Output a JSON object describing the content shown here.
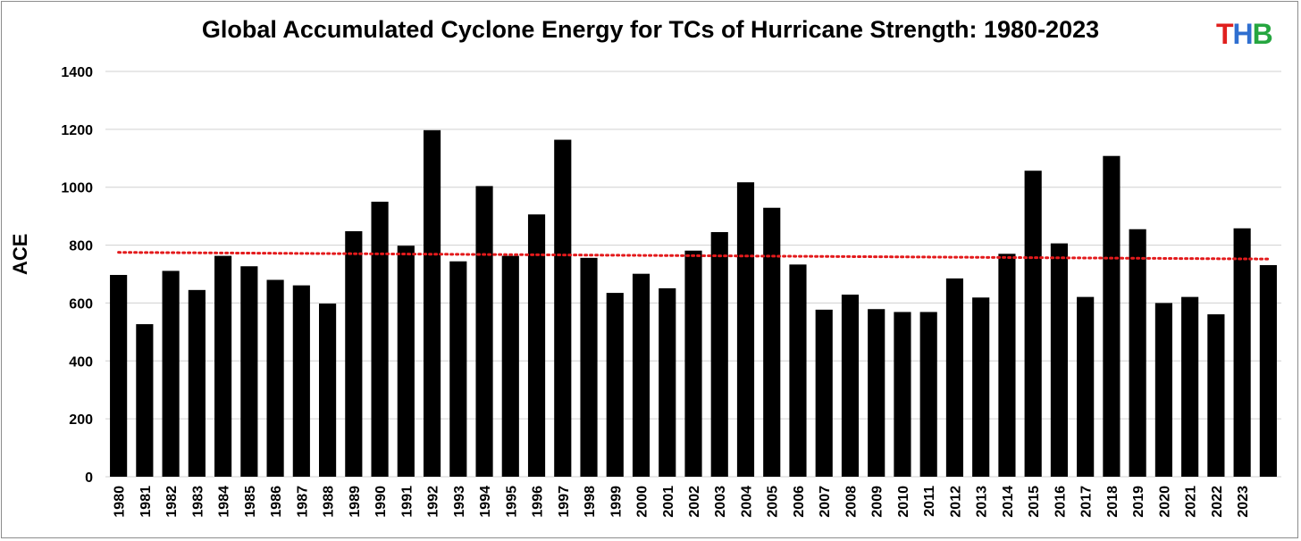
{
  "chart_data": {
    "type": "bar",
    "title": "Global Accumulated Cyclone Energy for TCs of Hurricane Strength: 1980-2023",
    "xlabel": "",
    "ylabel": "ACE",
    "ylim": [
      0,
      1400
    ],
    "yticks": [
      "0",
      "200",
      "400",
      "600",
      "800",
      "1000",
      "1200",
      "1400"
    ],
    "grid": true,
    "bar_color": "#000000",
    "trend_color": "#e31a1c",
    "categories": [
      "1980",
      "1981",
      "1982",
      "1983",
      "1984",
      "1985",
      "1986",
      "1987",
      "1988",
      "1989",
      "1990",
      "1991",
      "1992",
      "1993",
      "1994",
      "1995",
      "1996",
      "1997",
      "1998",
      "1999",
      "2000",
      "2001",
      "2002",
      "2003",
      "2004",
      "2005",
      "2006",
      "2007",
      "2008",
      "2009",
      "2010",
      "2011",
      "2012",
      "2013",
      "2014",
      "2015",
      "2016",
      "2017",
      "2018",
      "2019",
      "2020",
      "2021",
      "2022",
      "2023",
      ""
    ],
    "values": [
      697,
      527,
      711,
      645,
      763,
      727,
      680,
      661,
      598,
      848,
      950,
      798,
      1197,
      744,
      1004,
      763,
      906,
      1164,
      756,
      635,
      701,
      651,
      781,
      845,
      1017,
      929,
      733,
      577,
      629,
      579,
      569,
      569,
      685,
      619,
      770,
      1057,
      806,
      621,
      1108,
      855,
      600,
      621,
      561,
      858,
      731
    ],
    "trend": {
      "type": "linear",
      "start": 775,
      "end": 752
    }
  },
  "logo": {
    "letters": [
      {
        "text": "T",
        "color": "#e0201e"
      },
      {
        "text": "H",
        "color": "#2f6fd0"
      },
      {
        "text": "B",
        "color": "#26a640"
      }
    ]
  }
}
